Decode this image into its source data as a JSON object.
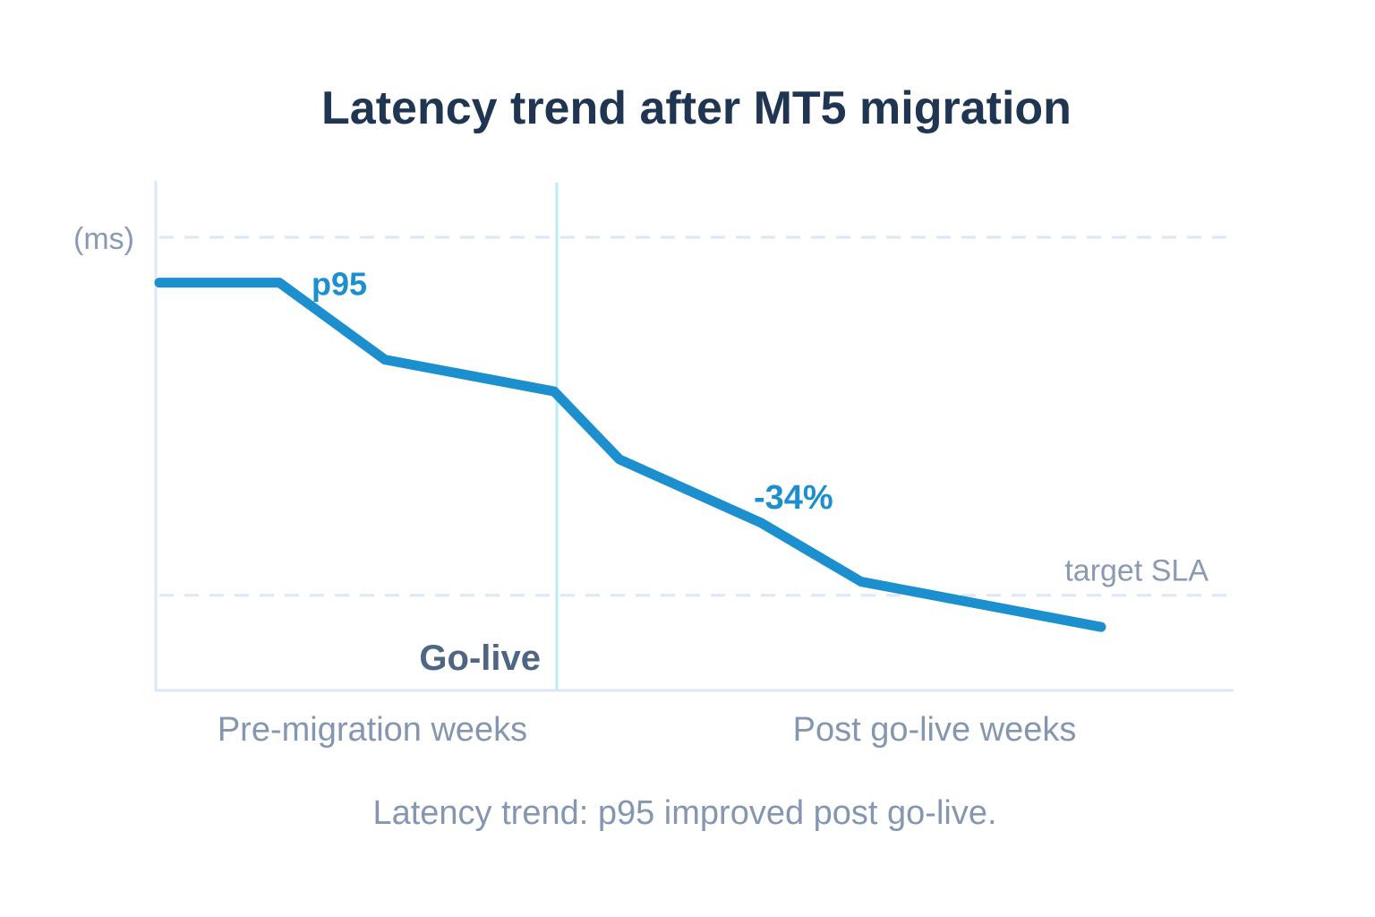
{
  "chart_data": {
    "type": "line",
    "title": "Latency trend after MT5 migration",
    "ylabel": "(ms)",
    "xlabel": "",
    "x_category_labels": [
      "Pre-migration weeks",
      "Post go-live weeks"
    ],
    "x": [
      0,
      1,
      2,
      3,
      4,
      5,
      6,
      7
    ],
    "ylim": [
      0,
      100
    ],
    "series": [
      {
        "name": "p95",
        "values": [
          90,
          90,
          73,
          66,
          51,
          37,
          24,
          14
        ]
      }
    ],
    "annotations": {
      "event_label": "Go-live",
      "event_x": 3,
      "reference_label": "target SLA",
      "reference_y": 21,
      "change_label": "-34%"
    },
    "grid": false,
    "legend": "none",
    "caption": "Latency trend: p95 improved post go-live."
  },
  "colors": {
    "series_line": "#1c8fcf",
    "title": "#1f3552",
    "event_line": "#b7eef0",
    "reference_line": "#dbe7f6",
    "axis": "#dbe7f6",
    "muted_text": "#8a9ab3",
    "event_text": "#4e6584"
  }
}
